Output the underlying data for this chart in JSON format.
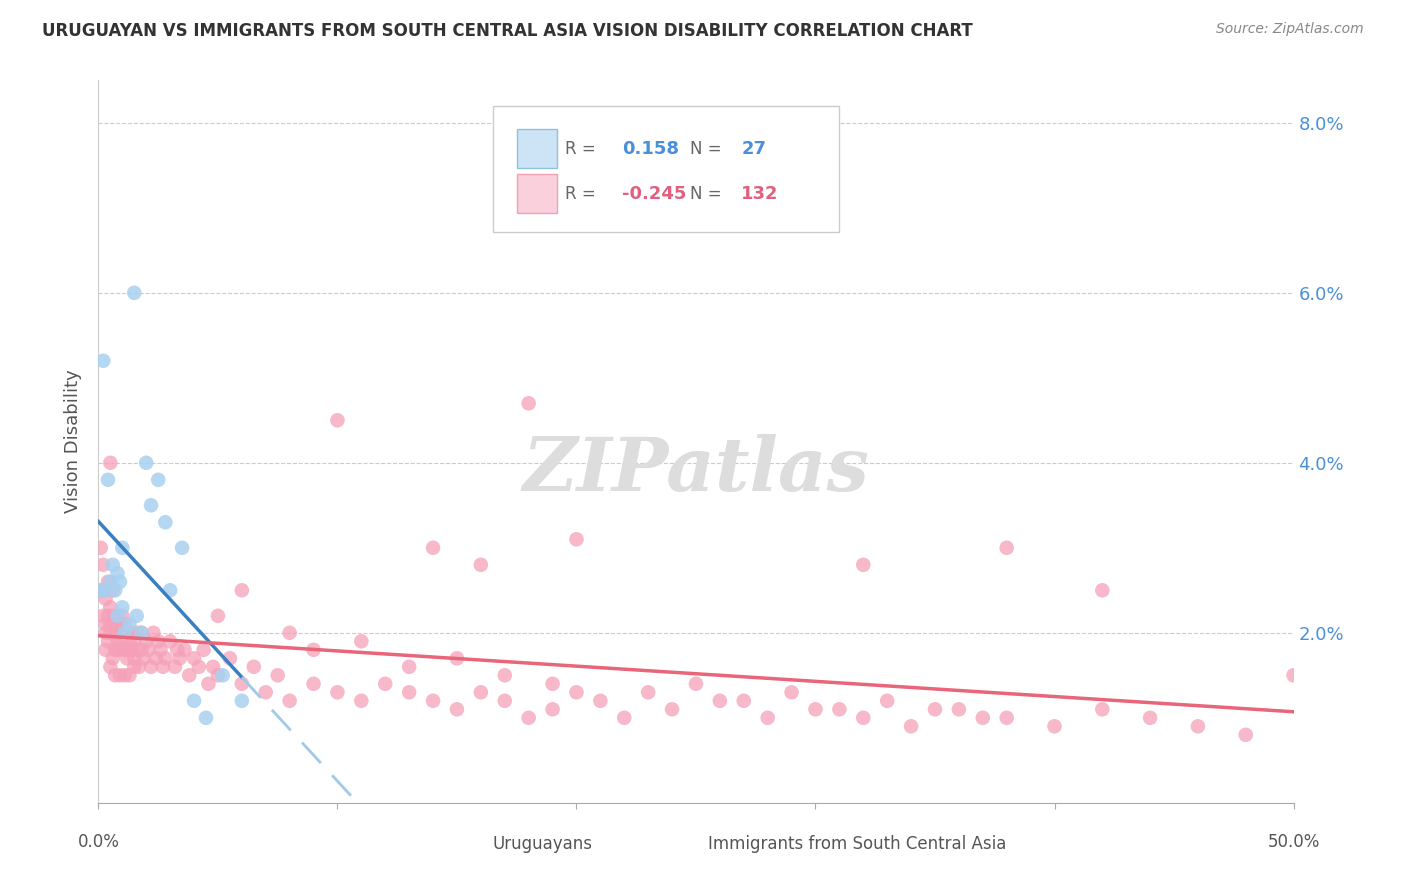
{
  "title": "URUGUAYAN VS IMMIGRANTS FROM SOUTH CENTRAL ASIA VISION DISABILITY CORRELATION CHART",
  "source": "Source: ZipAtlas.com",
  "ylabel": "Vision Disability",
  "ytick_labels": [
    "",
    "2.0%",
    "4.0%",
    "6.0%",
    "8.0%"
  ],
  "ytick_values": [
    0.0,
    0.02,
    0.04,
    0.06,
    0.08
  ],
  "xlim": [
    0.0,
    0.5
  ],
  "ylim": [
    0.0,
    0.085
  ],
  "R_uruguayan": 0.158,
  "N_uruguayan": 27,
  "R_immigrant": -0.245,
  "N_immigrant": 132,
  "uruguayan_color": "#a8d0f0",
  "immigrant_color": "#f5a0b8",
  "trend_uruguayan_solid_color": "#3a7fc1",
  "trend_uruguayan_dash_color": "#a0c8e8",
  "trend_immigrant_color": "#e8657a",
  "watermark": "ZIPatlas",
  "uru_x": [
    0.001,
    0.002,
    0.003,
    0.004,
    0.005,
    0.006,
    0.007,
    0.008,
    0.008,
    0.009,
    0.01,
    0.01,
    0.011,
    0.013,
    0.015,
    0.016,
    0.018,
    0.02,
    0.022,
    0.025,
    0.028,
    0.03,
    0.035,
    0.04,
    0.045,
    0.052,
    0.06
  ],
  "uru_y": [
    0.025,
    0.052,
    0.025,
    0.038,
    0.026,
    0.028,
    0.025,
    0.027,
    0.022,
    0.026,
    0.03,
    0.023,
    0.02,
    0.021,
    0.06,
    0.022,
    0.02,
    0.04,
    0.035,
    0.038,
    0.033,
    0.025,
    0.03,
    0.012,
    0.01,
    0.015,
    0.012
  ],
  "imm_x": [
    0.001,
    0.001,
    0.002,
    0.002,
    0.002,
    0.003,
    0.003,
    0.003,
    0.003,
    0.004,
    0.004,
    0.004,
    0.005,
    0.005,
    0.005,
    0.005,
    0.006,
    0.006,
    0.006,
    0.006,
    0.007,
    0.007,
    0.007,
    0.007,
    0.008,
    0.008,
    0.008,
    0.009,
    0.009,
    0.009,
    0.01,
    0.01,
    0.01,
    0.011,
    0.011,
    0.011,
    0.012,
    0.012,
    0.012,
    0.013,
    0.013,
    0.013,
    0.014,
    0.014,
    0.015,
    0.015,
    0.015,
    0.016,
    0.016,
    0.017,
    0.018,
    0.018,
    0.019,
    0.02,
    0.021,
    0.022,
    0.023,
    0.024,
    0.025,
    0.026,
    0.027,
    0.028,
    0.03,
    0.032,
    0.033,
    0.034,
    0.036,
    0.038,
    0.04,
    0.042,
    0.044,
    0.046,
    0.048,
    0.05,
    0.055,
    0.06,
    0.065,
    0.07,
    0.075,
    0.08,
    0.09,
    0.1,
    0.11,
    0.12,
    0.13,
    0.14,
    0.15,
    0.16,
    0.17,
    0.18,
    0.19,
    0.2,
    0.21,
    0.22,
    0.24,
    0.26,
    0.28,
    0.3,
    0.32,
    0.34,
    0.36,
    0.38,
    0.4,
    0.42,
    0.44,
    0.46,
    0.48,
    0.5,
    0.18,
    0.32,
    0.38,
    0.42,
    0.1,
    0.14,
    0.16,
    0.2,
    0.05,
    0.06,
    0.08,
    0.09,
    0.11,
    0.13,
    0.15,
    0.17,
    0.19,
    0.23,
    0.25,
    0.27,
    0.29,
    0.31,
    0.33,
    0.35,
    0.37,
    0.005
  ],
  "imm_y": [
    0.03,
    0.025,
    0.025,
    0.022,
    0.028,
    0.02,
    0.021,
    0.024,
    0.018,
    0.022,
    0.026,
    0.019,
    0.021,
    0.023,
    0.02,
    0.016,
    0.02,
    0.021,
    0.025,
    0.017,
    0.018,
    0.02,
    0.022,
    0.015,
    0.019,
    0.021,
    0.018,
    0.021,
    0.018,
    0.015,
    0.02,
    0.022,
    0.019,
    0.021,
    0.018,
    0.015,
    0.018,
    0.02,
    0.017,
    0.019,
    0.018,
    0.015,
    0.018,
    0.02,
    0.017,
    0.019,
    0.016,
    0.018,
    0.02,
    0.016,
    0.018,
    0.02,
    0.017,
    0.019,
    0.018,
    0.016,
    0.02,
    0.017,
    0.019,
    0.018,
    0.016,
    0.017,
    0.019,
    0.016,
    0.018,
    0.017,
    0.018,
    0.015,
    0.017,
    0.016,
    0.018,
    0.014,
    0.016,
    0.015,
    0.017,
    0.014,
    0.016,
    0.013,
    0.015,
    0.012,
    0.014,
    0.013,
    0.012,
    0.014,
    0.013,
    0.012,
    0.011,
    0.013,
    0.012,
    0.01,
    0.011,
    0.013,
    0.012,
    0.01,
    0.011,
    0.012,
    0.01,
    0.011,
    0.01,
    0.009,
    0.011,
    0.01,
    0.009,
    0.011,
    0.01,
    0.009,
    0.008,
    0.015,
    0.047,
    0.028,
    0.03,
    0.025,
    0.045,
    0.03,
    0.028,
    0.031,
    0.022,
    0.025,
    0.02,
    0.018,
    0.019,
    0.016,
    0.017,
    0.015,
    0.014,
    0.013,
    0.014,
    0.012,
    0.013,
    0.011,
    0.012,
    0.011,
    0.01,
    0.04
  ]
}
